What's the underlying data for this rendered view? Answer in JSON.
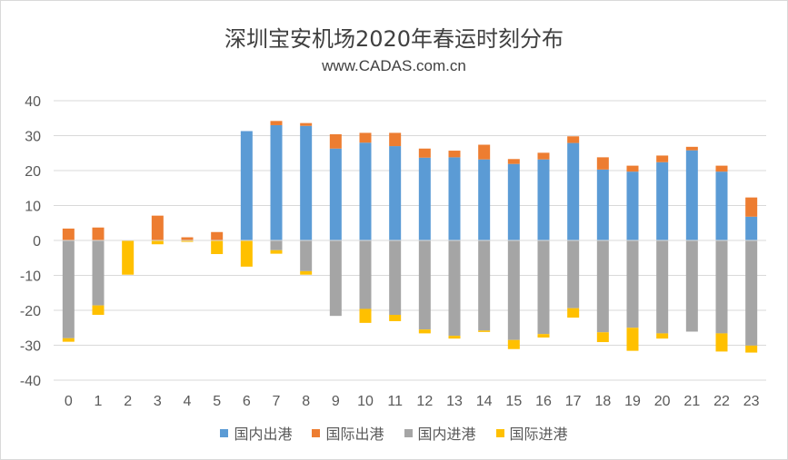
{
  "chart": {
    "title": "深圳宝安机场2020年春运时刻分布",
    "subtitle": "www.CADAS.com.cn"
  },
  "chart_data": {
    "type": "bar",
    "stacked": true,
    "title": "深圳宝安机场2020年春运时刻分布",
    "subtitle": "www.CADAS.com.cn",
    "categories": [
      "0",
      "1",
      "2",
      "3",
      "4",
      "5",
      "6",
      "7",
      "8",
      "9",
      "10",
      "11",
      "12",
      "13",
      "14",
      "15",
      "16",
      "17",
      "18",
      "19",
      "20",
      "21",
      "22",
      "23"
    ],
    "ylim": [
      -40,
      40
    ],
    "yticks": [
      40,
      30,
      20,
      10,
      0,
      -10,
      -20,
      -30,
      -40
    ],
    "grid": true,
    "legend_position": "bottom",
    "series": [
      {
        "name": "国内出港",
        "color": "#5b9bd5",
        "values": [
          0,
          0,
          0,
          0,
          0,
          0,
          31.3,
          33,
          32.8,
          26.3,
          28,
          27,
          23.7,
          23.8,
          23.2,
          21.9,
          23.2,
          27.9,
          20.3,
          19.7,
          22.4,
          25.8,
          19.7,
          6.8
        ]
      },
      {
        "name": "国际出港",
        "color": "#ed7d31",
        "values": [
          3.4,
          3.7,
          0,
          7.1,
          0.9,
          2.4,
          0,
          1.2,
          0.8,
          4.1,
          2.8,
          3.8,
          2.6,
          1.9,
          4.2,
          1.4,
          1.9,
          1.9,
          3.5,
          1.7,
          1.9,
          1.0,
          1.7,
          5.5
        ]
      },
      {
        "name": "国内进港",
        "color": "#a5a5a5",
        "values": [
          -28,
          -18.6,
          0,
          0,
          0,
          0,
          0,
          -2.8,
          -8.8,
          -21.6,
          -19.6,
          -21.3,
          -25.5,
          -27.3,
          -25.8,
          -28.5,
          -26.8,
          -19.4,
          -26.3,
          -25.0,
          -26.6,
          -26.1,
          -26.6,
          -30.1
        ]
      },
      {
        "name": "国际进港",
        "color": "#ffc000",
        "values": [
          -1.0,
          -2.7,
          -9.8,
          -1.1,
          -0.4,
          -3.9,
          -7.5,
          -1.0,
          -1.0,
          0,
          -4.0,
          -1.8,
          -1.1,
          -0.8,
          -0.4,
          -2.6,
          -1.0,
          -2.7,
          -2.8,
          -6.6,
          -1.5,
          0,
          -5.2,
          -2.0
        ]
      }
    ]
  }
}
